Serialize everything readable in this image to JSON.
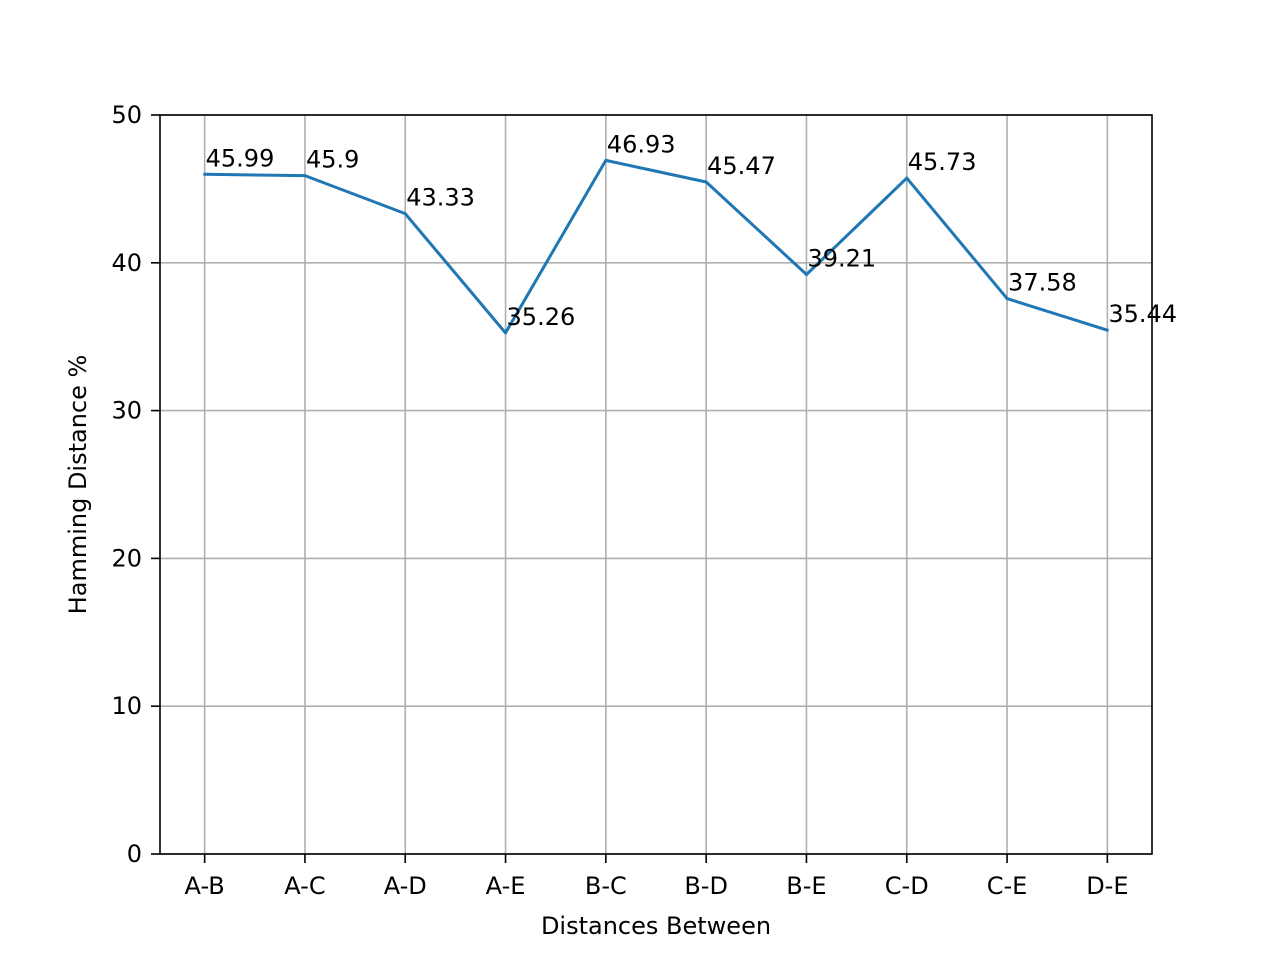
{
  "chart_data": {
    "type": "line",
    "title": "",
    "xlabel": "Distances Between",
    "ylabel": "Hamming Distance %",
    "categories": [
      "A-B",
      "A-C",
      "A-D",
      "A-E",
      "B-C",
      "B-D",
      "B-E",
      "C-D",
      "C-E",
      "D-E"
    ],
    "series": [
      {
        "values": [
          45.99,
          45.9,
          43.33,
          35.26,
          46.93,
          45.47,
          39.21,
          45.73,
          37.58,
          35.44
        ],
        "data_labels": [
          "45.99",
          "45.9",
          "43.33",
          "35.26",
          "46.93",
          "45.47",
          "39.21",
          "45.73",
          "37.58",
          "35.44"
        ],
        "color": "#1f77b4"
      }
    ],
    "ylim": [
      0,
      50
    ],
    "yticks": [
      0,
      10,
      20,
      30,
      40,
      50
    ],
    "ytick_labels": [
      "0",
      "10",
      "20",
      "30",
      "40",
      "50"
    ],
    "grid": true,
    "legend": "none",
    "colors": {
      "line": "#1f77b4",
      "grid": "#b0b0b0",
      "axes": "#000000"
    }
  }
}
